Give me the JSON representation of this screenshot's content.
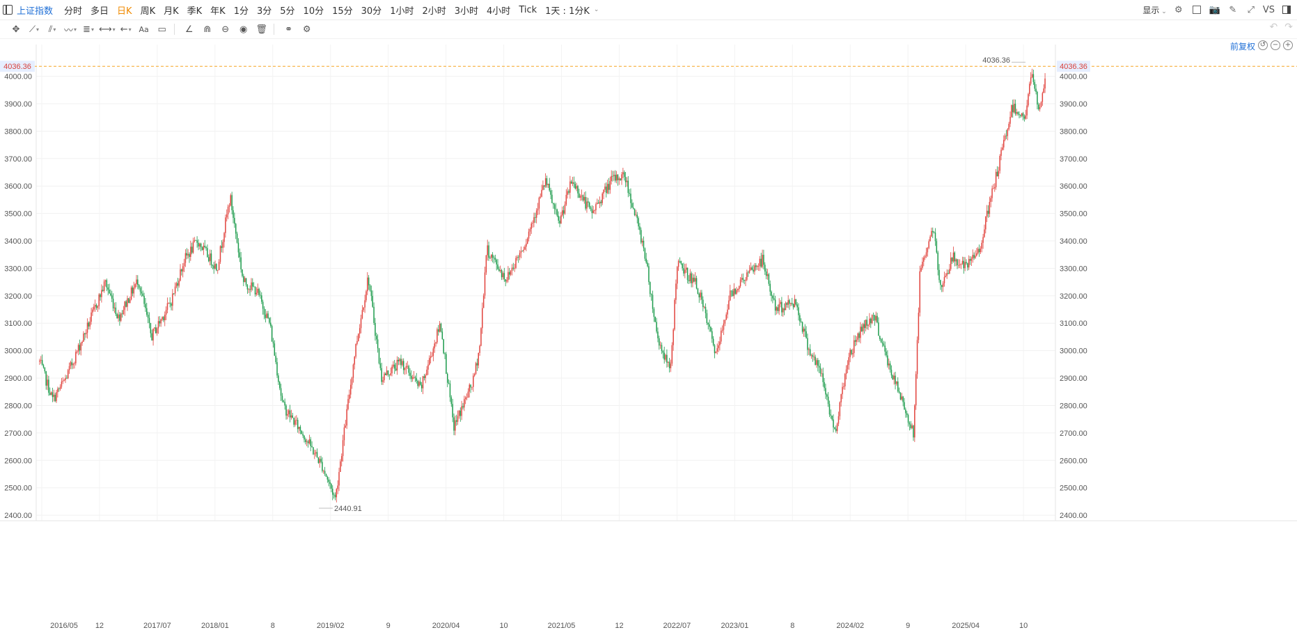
{
  "topbar": {
    "symbol": "上证指数",
    "periods": [
      "分时",
      "多日",
      "日K",
      "周K",
      "月K",
      "季K",
      "年K",
      "1分",
      "3分",
      "5分",
      "10分",
      "15分",
      "30分",
      "1小时",
      "2小时",
      "3小时",
      "4小时",
      "Tick",
      "1天 : 1分K"
    ],
    "active_period_index": 2,
    "display_label": "显示",
    "vs_label": "VS"
  },
  "chart": {
    "adjust_label": "前复权",
    "price_axis": [
      "4000.00",
      "3900.00",
      "3800.00",
      "3700.00",
      "3600.00",
      "3500.00",
      "3400.00",
      "3300.00",
      "3200.00",
      "3100.00",
      "3000.00",
      "2900.00",
      "2800.00",
      "2700.00",
      "2600.00",
      "2500.00",
      "2400.00"
    ],
    "time_axis": [
      "2016/05",
      "12",
      "2017/07",
      "2018/01",
      "8",
      "2019/02",
      "9",
      "2020/04",
      "10",
      "2021/05",
      "12",
      "2022/07",
      "2023/01",
      "8",
      "2024/02",
      "9",
      "2025/04",
      "10"
    ],
    "current_price_label": "4036.36",
    "high_marker": "4036.36",
    "low_marker": "2440.91",
    "colors": {
      "up": "#e0403a",
      "down": "#1a9a4a",
      "accent": "#1f6fd6",
      "active": "#f08a00",
      "price_line": "#f5a623"
    }
  },
  "chart_data": {
    "type": "candlestick",
    "title": "",
    "xlabel": "",
    "ylabel": "",
    "ylim": [
      2380,
      4075
    ],
    "x": [
      "2016/05",
      "2016/12",
      "2017/07",
      "2018/01",
      "2018/08",
      "2019/02",
      "2019/09",
      "2020/04",
      "2020/10",
      "2021/05",
      "2021/12",
      "2022/07",
      "2023/01",
      "2023/08",
      "2024/02",
      "2024/09",
      "2025/04",
      "2025/10"
    ],
    "anchors": [
      [
        0,
        2960
      ],
      [
        2,
        2820
      ],
      [
        4,
        2900
      ],
      [
        7,
        3070
      ],
      [
        10,
        3250
      ],
      [
        12,
        3120
      ],
      [
        15,
        3260
      ],
      [
        17,
        3050
      ],
      [
        20,
        3180
      ],
      [
        22,
        3330
      ],
      [
        24,
        3400
      ],
      [
        27,
        3300
      ],
      [
        29,
        3560
      ],
      [
        31,
        3250
      ],
      [
        33,
        3220
      ],
      [
        35,
        3100
      ],
      [
        37,
        2800
      ],
      [
        40,
        2700
      ],
      [
        43,
        2580
      ],
      [
        45,
        2460
      ],
      [
        48,
        3000
      ],
      [
        50,
        3270
      ],
      [
        52,
        2900
      ],
      [
        55,
        2960
      ],
      [
        58,
        2860
      ],
      [
        61,
        3100
      ],
      [
        63,
        2720
      ],
      [
        66,
        2890
      ],
      [
        67,
        3020
      ],
      [
        68,
        3370
      ],
      [
        71,
        3260
      ],
      [
        74,
        3400
      ],
      [
        77,
        3620
      ],
      [
        79,
        3460
      ],
      [
        81,
        3620
      ],
      [
        84,
        3500
      ],
      [
        87,
        3620
      ],
      [
        89,
        3640
      ],
      [
        92,
        3370
      ],
      [
        94,
        3050
      ],
      [
        96,
        2920
      ],
      [
        97,
        3320
      ],
      [
        100,
        3240
      ],
      [
        103,
        2980
      ],
      [
        105,
        3200
      ],
      [
        107,
        3260
      ],
      [
        110,
        3330
      ],
      [
        112,
        3150
      ],
      [
        115,
        3180
      ],
      [
        117,
        3010
      ],
      [
        119,
        2910
      ],
      [
        121,
        2700
      ],
      [
        123,
        2970
      ],
      [
        125,
        3080
      ],
      [
        127,
        3130
      ],
      [
        129,
        2960
      ],
      [
        131,
        2830
      ],
      [
        133,
        2700
      ],
      [
        134,
        3300
      ],
      [
        136,
        3450
      ],
      [
        137,
        3230
      ],
      [
        139,
        3340
      ],
      [
        141,
        3300
      ],
      [
        143,
        3370
      ],
      [
        146,
        3680
      ],
      [
        148,
        3890
      ],
      [
        150,
        3850
      ],
      [
        151,
        4020
      ],
      [
        152,
        3870
      ],
      [
        153,
        3990
      ]
    ],
    "last": 4036.36,
    "series_high": 4036.36,
    "series_low": 2440.91
  }
}
